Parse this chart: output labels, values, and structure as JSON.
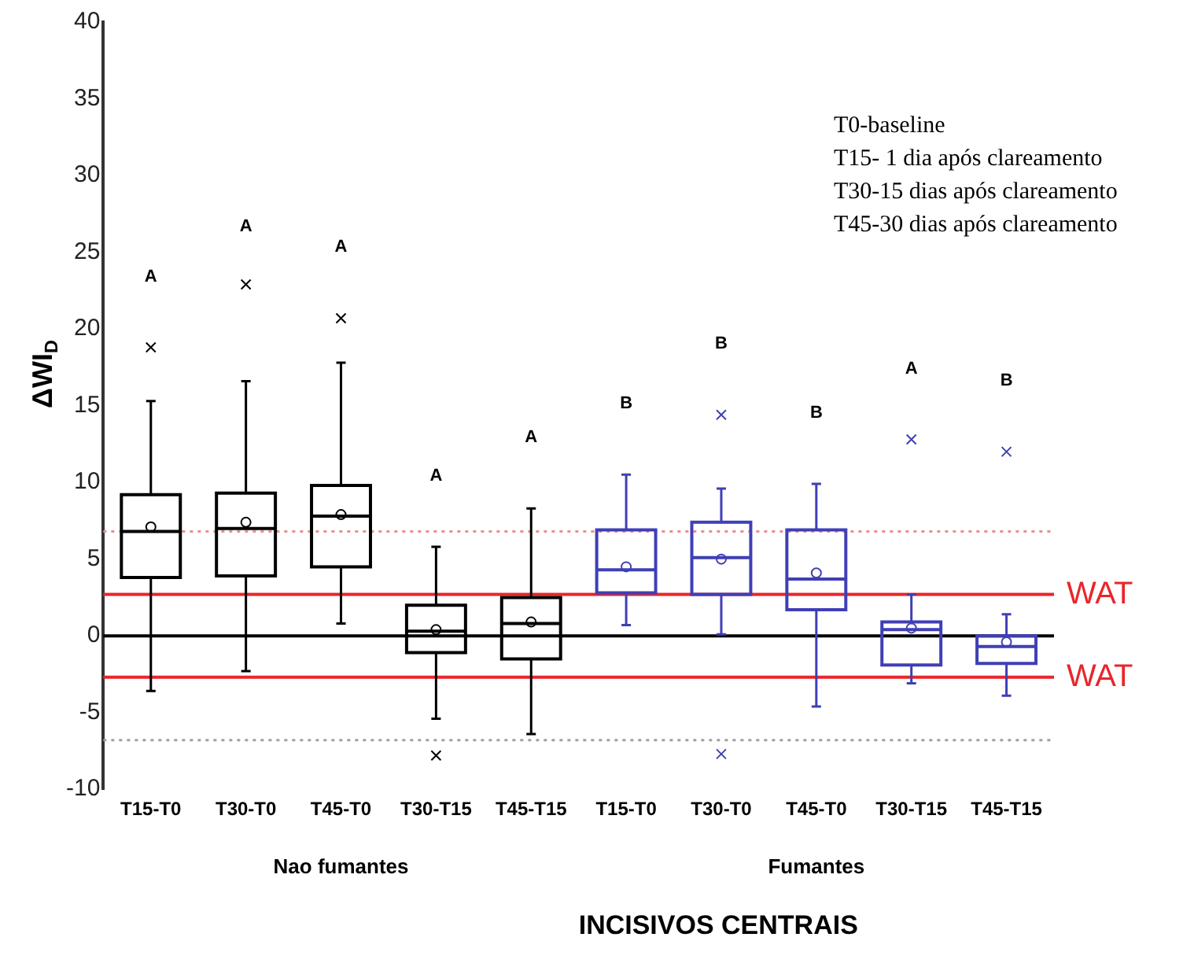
{
  "chart_data": {
    "type": "box",
    "ylabel": "ΔWI$_{D}$",
    "xlabel": "INCISIVOS CENTRAIS",
    "categories": [
      "T15-T0",
      "T30-T0",
      "T45-T0",
      "T30-T15",
      "T45-T15",
      "T15-T0",
      "T30-T0",
      "T45-T0",
      "T30-T15",
      "T45-T15"
    ],
    "ylim": [
      -10,
      40
    ],
    "yticks": [
      -10,
      -5,
      0,
      5,
      10,
      15,
      20,
      25,
      30,
      35,
      40
    ],
    "marker": "cross",
    "series": [
      {
        "color": "#000000",
        "boxes": [
          {
            "low": -3.6,
            "q1": 3.8,
            "median": 6.8,
            "q3": 9.2,
            "high": 15.3,
            "mean": 7.1,
            "outliers": [
              18.8
            ]
          },
          {
            "low": -2.3,
            "q1": 3.9,
            "median": 7.0,
            "q3": 9.3,
            "high": 16.6,
            "mean": 7.4,
            "outliers": [
              22.9
            ]
          },
          {
            "low": 0.8,
            "q1": 4.5,
            "median": 7.8,
            "q3": 9.8,
            "high": 17.8,
            "mean": 7.9,
            "outliers": [
              20.7
            ]
          },
          {
            "low": -5.4,
            "q1": -1.1,
            "median": 0.3,
            "q3": 2.0,
            "high": 5.8,
            "mean": 0.4,
            "outliers": [
              -7.8
            ]
          },
          {
            "low": -6.4,
            "q1": -1.5,
            "median": 0.8,
            "q3": 2.5,
            "high": 8.3,
            "mean": 0.9
          },
          null,
          null,
          null,
          null,
          null
        ]
      },
      {
        "color": "#3f3fb5",
        "boxes": [
          null,
          null,
          null,
          null,
          null,
          {
            "low": 0.7,
            "q1": 2.8,
            "median": 4.3,
            "q3": 6.9,
            "high": 10.5,
            "mean": 4.5
          },
          {
            "low": 0.1,
            "q1": 2.7,
            "median": 5.1,
            "q3": 7.4,
            "high": 9.6,
            "mean": 5.0,
            "outliers": [
              14.4,
              -7.7
            ]
          },
          {
            "low": -4.6,
            "q1": 1.7,
            "median": 3.7,
            "q3": 6.9,
            "high": 9.9,
            "mean": 4.1
          },
          {
            "low": -3.1,
            "q1": -1.9,
            "median": 0.4,
            "q3": 0.9,
            "high": 2.7,
            "mean": 0.5,
            "outliers": [
              12.8
            ]
          },
          {
            "low": -3.9,
            "q1": -1.8,
            "median": -0.7,
            "q3": 0.0,
            "high": 1.4,
            "mean": -0.4,
            "outliers": [
              12.0
            ]
          }
        ]
      }
    ],
    "ref_lines": [
      {
        "axis": "y",
        "value": 0,
        "color": "#000000",
        "line_style": "solid"
      },
      {
        "axis": "y",
        "value": 2.7,
        "label": "WAT",
        "color": "#e8262b",
        "line_style": "solid"
      },
      {
        "axis": "y",
        "value": -2.7,
        "label": "WAT",
        "color": "#e8262b",
        "line_style": "solid"
      },
      {
        "axis": "y",
        "value": 6.8,
        "color": "#e89090",
        "line_style": "dotted"
      },
      {
        "axis": "y",
        "value": -6.8,
        "color": "#a0a0a0",
        "line_style": "dotted"
      }
    ],
    "annotations": [
      "T0-baseline",
      "T15- 1 dia após clareamento",
      "T30-15 dias após clareamento",
      "T45-30 dias após clareamento",
      "A",
      "A",
      "A",
      "A",
      "A",
      "B",
      "B",
      "B",
      "A",
      "B",
      "Nao fumantes",
      "Fumantes"
    ]
  }
}
